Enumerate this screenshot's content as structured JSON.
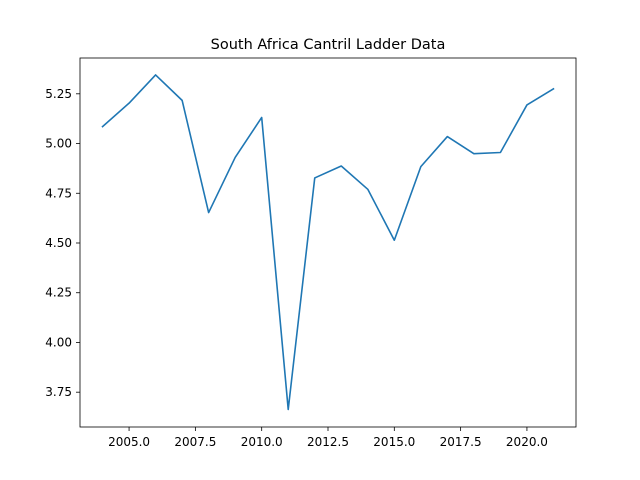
{
  "chart_data": {
    "type": "line",
    "title": "South Africa Cantril Ladder Data",
    "xlabel": "",
    "ylabel": "",
    "xlim": [
      2003.15,
      2021.85
    ],
    "ylim": [
      3.575,
      5.43
    ],
    "xticks": [
      2005.0,
      2007.5,
      2010.0,
      2012.5,
      2015.0,
      2017.5,
      2020.0
    ],
    "xtick_labels": [
      "2005.0",
      "2007.5",
      "2010.0",
      "2012.5",
      "2015.0",
      "2017.5",
      "2020.0"
    ],
    "yticks": [
      3.75,
      4.0,
      4.25,
      4.5,
      4.75,
      5.0,
      5.25
    ],
    "ytick_labels": [
      "3.75",
      "4.00",
      "4.25",
      "4.50",
      "4.75",
      "5.00",
      "5.25"
    ],
    "grid": false,
    "series": [
      {
        "color": "#1f77b4",
        "x": [
          2004,
          2005,
          2006,
          2007,
          2008,
          2009,
          2010,
          2011,
          2012,
          2013,
          2014,
          2015,
          2016,
          2017,
          2018,
          2019,
          2020,
          2021
        ],
        "values": [
          5.085,
          5.203,
          5.345,
          5.217,
          4.653,
          4.93,
          5.131,
          3.663,
          4.827,
          4.887,
          4.77,
          4.514,
          4.884,
          5.035,
          4.949,
          4.955,
          5.194,
          5.275
        ]
      }
    ]
  }
}
